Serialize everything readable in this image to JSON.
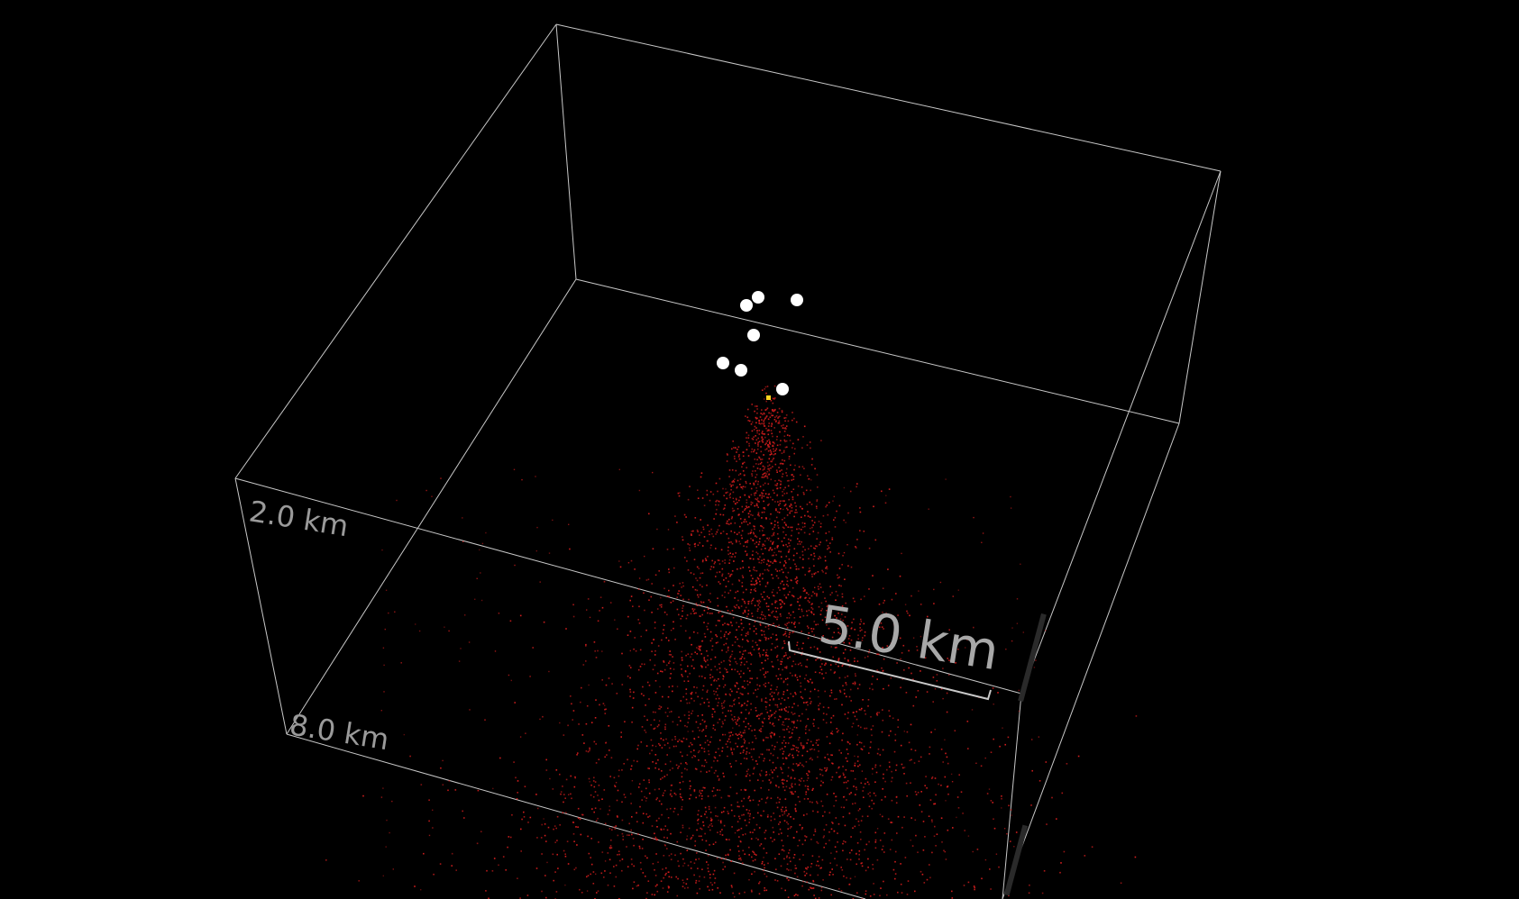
{
  "view": {
    "background_color": "#000000",
    "box_edge_color": "#c8c8c8",
    "depth_labels": [
      {
        "text": "2.0 km"
      },
      {
        "text": "8.0 km"
      }
    ],
    "scale_bar": {
      "label": "5.0 km"
    }
  },
  "stations": {
    "color": "#ffffff",
    "count_visible": 7
  },
  "event_cloud": {
    "color": "#d81e1e",
    "marker": "red-point",
    "distribution": "dense cone narrowing upward to the source"
  },
  "source": {
    "color": "#ffd21e",
    "marker": "yellow-square"
  },
  "side_labels": [
    {
      "text": "",
      "note": "faint rotated labels on right edge, unreadable"
    }
  ]
}
